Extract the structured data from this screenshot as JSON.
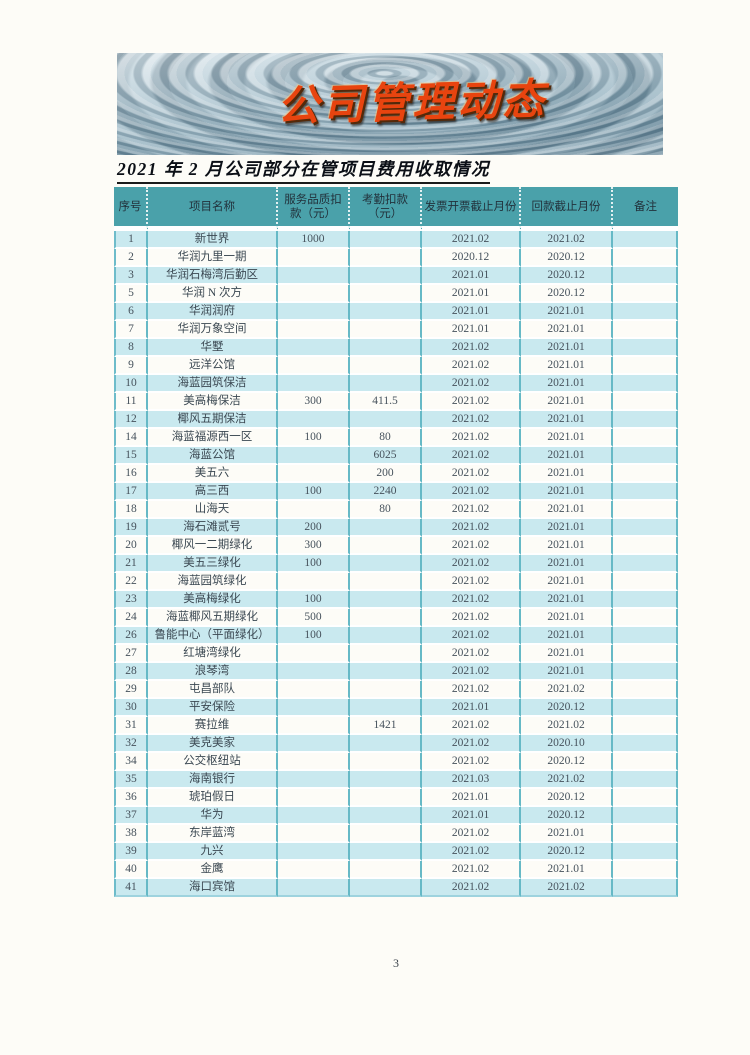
{
  "banner": {
    "calligraphy": "公司管理动态"
  },
  "title": "2021 年 2 月公司部分在管项目费用收取情况",
  "page": {
    "number": "3"
  },
  "colors": {
    "table_header_bg": "#4aa1aa",
    "table_row_alt_bg": "#c9e9ef",
    "table_grid": "#66b9c6",
    "calligraphy_red": "#e8440f"
  },
  "table": {
    "columns": [
      "序号",
      "项目名称",
      "服务品质扣款（元）",
      "考勤扣款（元）",
      "发票开票截止月份",
      "回款截止月份",
      "备注"
    ],
    "rows": [
      [
        "1",
        "新世界",
        "1000",
        "",
        "2021.02",
        "2021.02",
        ""
      ],
      [
        "2",
        "华润九里一期",
        "",
        "",
        "2020.12",
        "2020.12",
        ""
      ],
      [
        "3",
        "华润石梅湾后勤区",
        "",
        "",
        "2021.01",
        "2020.12",
        ""
      ],
      [
        "5",
        "华润 N 次方",
        "",
        "",
        "2021.01",
        "2020.12",
        ""
      ],
      [
        "6",
        "华润润府",
        "",
        "",
        "2021.01",
        "2021.01",
        ""
      ],
      [
        "7",
        "华润万象空间",
        "",
        "",
        "2021.01",
        "2021.01",
        ""
      ],
      [
        "8",
        "华墅",
        "",
        "",
        "2021.02",
        "2021.01",
        ""
      ],
      [
        "9",
        "远洋公馆",
        "",
        "",
        "2021.02",
        "2021.01",
        ""
      ],
      [
        "10",
        "海蓝园筑保洁",
        "",
        "",
        "2021.02",
        "2021.01",
        ""
      ],
      [
        "11",
        "美高梅保洁",
        "300",
        "411.5",
        "2021.02",
        "2021.01",
        ""
      ],
      [
        "12",
        "椰风五期保洁",
        "",
        "",
        "2021.02",
        "2021.01",
        ""
      ],
      [
        "14",
        "海蓝福源西一区",
        "100",
        "80",
        "2021.02",
        "2021.01",
        ""
      ],
      [
        "15",
        "海蓝公馆",
        "",
        "6025",
        "2021.02",
        "2021.01",
        ""
      ],
      [
        "16",
        "美五六",
        "",
        "200",
        "2021.02",
        "2021.01",
        ""
      ],
      [
        "17",
        "高三西",
        "100",
        "2240",
        "2021.02",
        "2021.01",
        ""
      ],
      [
        "18",
        "山海天",
        "",
        "80",
        "2021.02",
        "2021.01",
        ""
      ],
      [
        "19",
        "海石滩贰号",
        "200",
        "",
        "2021.02",
        "2021.01",
        ""
      ],
      [
        "20",
        "椰风一二期绿化",
        "300",
        "",
        "2021.02",
        "2021.01",
        ""
      ],
      [
        "21",
        "美五三绿化",
        "100",
        "",
        "2021.02",
        "2021.01",
        ""
      ],
      [
        "22",
        "海蓝园筑绿化",
        "",
        "",
        "2021.02",
        "2021.01",
        ""
      ],
      [
        "23",
        "美高梅绿化",
        "100",
        "",
        "2021.02",
        "2021.01",
        ""
      ],
      [
        "24",
        "海蓝椰风五期绿化",
        "500",
        "",
        "2021.02",
        "2021.01",
        ""
      ],
      [
        "26",
        "鲁能中心（平面绿化）",
        "100",
        "",
        "2021.02",
        "2021.01",
        ""
      ],
      [
        "27",
        "红塘湾绿化",
        "",
        "",
        "2021.02",
        "2021.01",
        ""
      ],
      [
        "28",
        "浪琴湾",
        "",
        "",
        "2021.02",
        "2021.01",
        ""
      ],
      [
        "29",
        "屯昌部队",
        "",
        "",
        "2021.02",
        "2021.02",
        ""
      ],
      [
        "30",
        "平安保险",
        "",
        "",
        "2021.01",
        "2020.12",
        ""
      ],
      [
        "31",
        "赛拉维",
        "",
        "1421",
        "2021.02",
        "2021.02",
        ""
      ],
      [
        "32",
        "美克美家",
        "",
        "",
        "2021.02",
        "2020.10",
        ""
      ],
      [
        "34",
        "公交枢纽站",
        "",
        "",
        "2021.02",
        "2020.12",
        ""
      ],
      [
        "35",
        "海南银行",
        "",
        "",
        "2021.03",
        "2021.02",
        ""
      ],
      [
        "36",
        "琥珀假日",
        "",
        "",
        "2021.01",
        "2020.12",
        ""
      ],
      [
        "37",
        "华为",
        "",
        "",
        "2021.01",
        "2020.12",
        ""
      ],
      [
        "38",
        "东岸蓝湾",
        "",
        "",
        "2021.02",
        "2021.01",
        ""
      ],
      [
        "39",
        "九兴",
        "",
        "",
        "2021.02",
        "2020.12",
        ""
      ],
      [
        "40",
        "金鹰",
        "",
        "",
        "2021.02",
        "2021.01",
        ""
      ],
      [
        "41",
        "海口宾馆",
        "",
        "",
        "2021.02",
        "2021.02",
        ""
      ]
    ]
  }
}
